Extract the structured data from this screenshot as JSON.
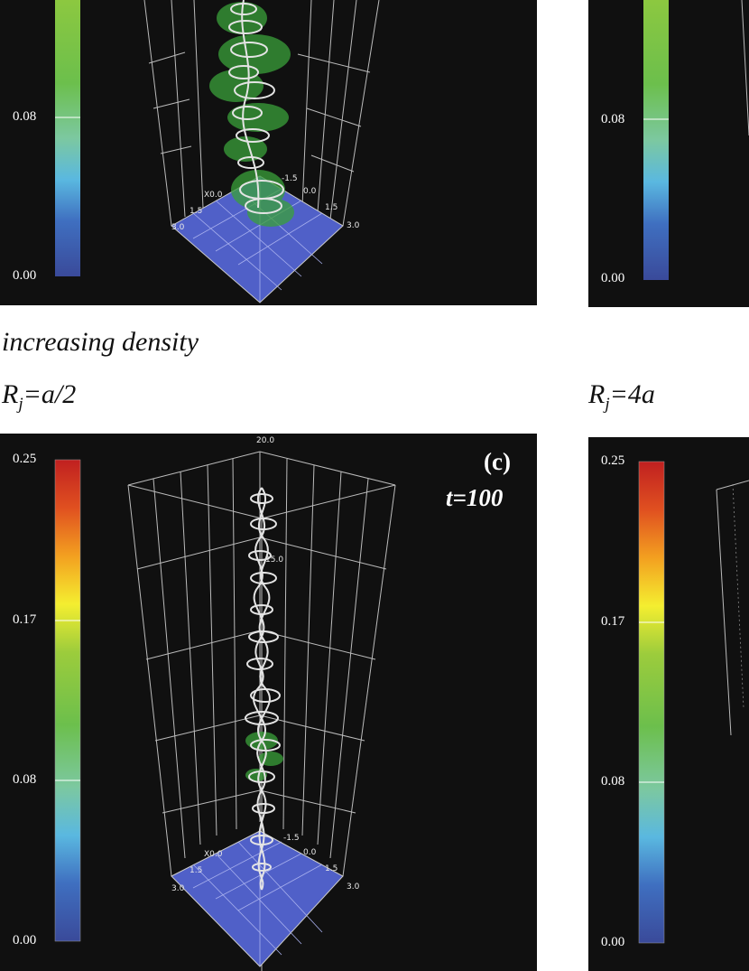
{
  "colors": {
    "colorbar_stops": [
      "#3a4a9a",
      "#3f6fc0",
      "#5ab8e0",
      "#7cc8a0",
      "#6cbf4c",
      "#9ccc3c",
      "#f4ee30",
      "#f3a020",
      "#e05020",
      "#c02020"
    ],
    "panel_bg": "#101010",
    "base_plane": "#5060c8",
    "tube": "#e0e0e0",
    "density": "#3aa03a"
  },
  "top_left": {
    "colorbar_labels": [
      "0.08",
      "0.00"
    ],
    "axis_labels": [
      "-1.5",
      "X0.0",
      "1.5",
      "3.0",
      "0.0",
      "1.5",
      "3.0"
    ]
  },
  "top_right": {
    "colorbar_labels": [
      "0.08",
      "0.00"
    ]
  },
  "heading": {
    "text": "increasing density"
  },
  "captions": {
    "left_main": "R",
    "left_sub": "j",
    "left_rest": "=a/2",
    "right_main": "R",
    "right_sub": "j",
    "right_rest": "=4a"
  },
  "bottom_left": {
    "panel_id": "(c)",
    "time_label": "t=100",
    "colorbar_labels": [
      "0.25",
      "0.17",
      "0.08",
      "0.00"
    ],
    "axis_labels": [
      "20.0",
      "15.0",
      "-1.5",
      "X0.0",
      "1.5",
      "3.0",
      "0.0",
      "1.5",
      "3.0"
    ]
  },
  "bottom_right": {
    "colorbar_labels": [
      "0.25",
      "0.17",
      "0.08",
      "0.00"
    ]
  }
}
